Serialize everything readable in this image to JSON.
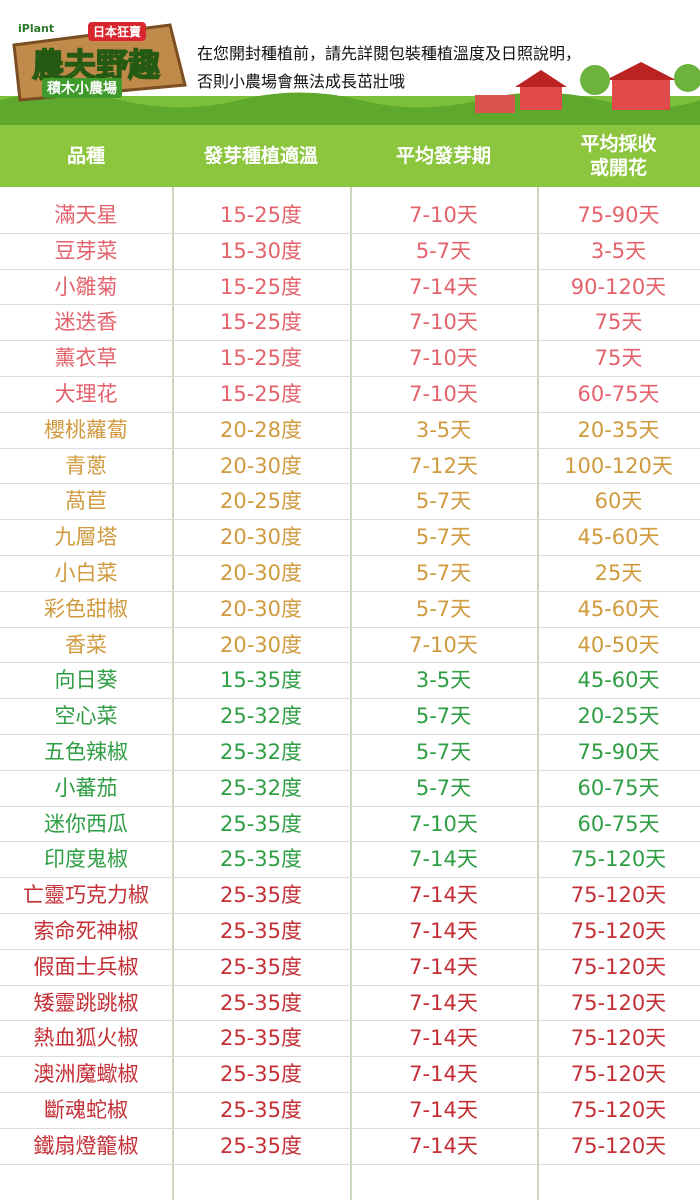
{
  "header": {
    "brand": "iPlant",
    "badge": "日本狂賣",
    "title": "農夫野趣",
    "subtitle": "積木小農場",
    "notice": [
      "在您開封種植前，請先詳閱包裝種植溫度及日照說明，",
      "否則小農場會無法成長茁壯哦"
    ]
  },
  "table": {
    "columns": [
      "品種",
      "發芽種植適溫",
      "平均發芽期",
      "平均採收\n或開花"
    ],
    "groups": [
      {
        "color": "#e4626c",
        "rows": [
          [
            "滿天星",
            "15-25度",
            "7-10天",
            "75-90天"
          ],
          [
            "豆芽菜",
            "15-30度",
            "5-7天",
            "3-5天"
          ],
          [
            "小雛菊",
            "15-25度",
            "7-14天",
            "90-120天"
          ],
          [
            "迷迭香",
            "15-25度",
            "7-10天",
            "75天"
          ],
          [
            "薰衣草",
            "15-25度",
            "7-10天",
            "75天"
          ],
          [
            "大理花",
            "15-25度",
            "7-10天",
            "60-75天"
          ]
        ]
      },
      {
        "color": "#d09a3e",
        "rows": [
          [
            "櫻桃蘿蔔",
            "20-28度",
            "3-5天",
            "20-35天"
          ],
          [
            "青蔥",
            "20-30度",
            "7-12天",
            "100-120天"
          ],
          [
            "萵苣",
            "20-25度",
            "5-7天",
            "60天"
          ],
          [
            "九層塔",
            "20-30度",
            "5-7天",
            "45-60天"
          ],
          [
            "小白菜",
            "20-30度",
            "5-7天",
            "25天"
          ],
          [
            "彩色甜椒",
            "20-30度",
            "5-7天",
            "45-60天"
          ],
          [
            "香菜",
            "20-30度",
            "7-10天",
            "40-50天"
          ]
        ]
      },
      {
        "color": "#2f9e44",
        "rows": [
          [
            "向日葵",
            "15-35度",
            "3-5天",
            "45-60天"
          ],
          [
            "空心菜",
            "25-32度",
            "5-7天",
            "20-25天"
          ],
          [
            "五色辣椒",
            "25-32度",
            "5-7天",
            "75-90天"
          ],
          [
            "小蕃茄",
            "25-32度",
            "5-7天",
            "60-75天"
          ],
          [
            "迷你西瓜",
            "25-35度",
            "7-10天",
            "60-75天"
          ],
          [
            "印度鬼椒",
            "25-35度",
            "7-14天",
            "75-120天"
          ]
        ]
      },
      {
        "color": "#c42f36",
        "rows": [
          [
            "亡靈巧克力椒",
            "25-35度",
            "7-14天",
            "75-120天"
          ],
          [
            "索命死神椒",
            "25-35度",
            "7-14天",
            "75-120天"
          ],
          [
            "假面士兵椒",
            "25-35度",
            "7-14天",
            "75-120天"
          ],
          [
            "矮靈跳跳椒",
            "25-35度",
            "7-14天",
            "75-120天"
          ],
          [
            "熱血狐火椒",
            "25-35度",
            "7-14天",
            "75-120天"
          ],
          [
            "澳洲魔蠍椒",
            "25-35度",
            "7-14天",
            "75-120天"
          ],
          [
            "斷魂蛇椒",
            "25-35度",
            "7-14天",
            "75-120天"
          ],
          [
            "鐵扇燈籠椒",
            "25-35度",
            "7-14天",
            "75-120天"
          ]
        ]
      }
    ]
  }
}
